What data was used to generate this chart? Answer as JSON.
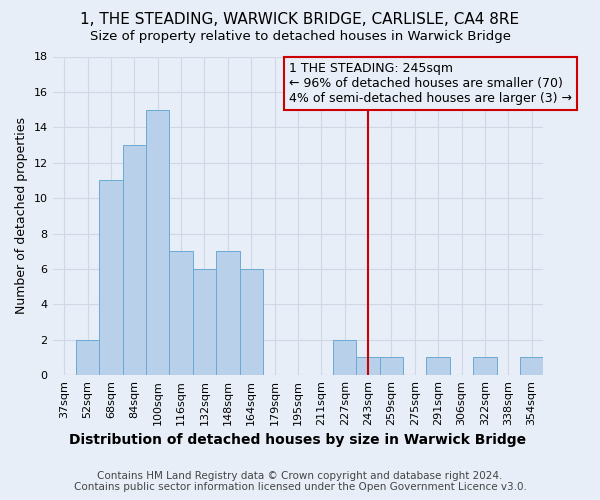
{
  "title": "1, THE STEADING, WARWICK BRIDGE, CARLISLE, CA4 8RE",
  "subtitle": "Size of property relative to detached houses in Warwick Bridge",
  "xlabel": "Distribution of detached houses by size in Warwick Bridge",
  "ylabel": "Number of detached properties",
  "footnote1": "Contains HM Land Registry data © Crown copyright and database right 2024.",
  "footnote2": "Contains public sector information licensed under the Open Government Licence v3.0.",
  "categories": [
    "37sqm",
    "52sqm",
    "68sqm",
    "84sqm",
    "100sqm",
    "116sqm",
    "132sqm",
    "148sqm",
    "164sqm",
    "179sqm",
    "195sqm",
    "211sqm",
    "227sqm",
    "243sqm",
    "259sqm",
    "275sqm",
    "291sqm",
    "306sqm",
    "322sqm",
    "338sqm",
    "354sqm"
  ],
  "values": [
    0,
    2,
    11,
    13,
    15,
    7,
    6,
    7,
    6,
    0,
    0,
    0,
    2,
    1,
    1,
    0,
    1,
    0,
    1,
    0,
    1
  ],
  "bar_color": "#b8d0ea",
  "bar_edge_color": "#6aaad4",
  "ylim": [
    0,
    18
  ],
  "yticks": [
    0,
    2,
    4,
    6,
    8,
    10,
    12,
    14,
    16,
    18
  ],
  "vline_index": 13,
  "vline_color": "#cc0000",
  "annotation_text": "1 THE STEADING: 245sqm\n← 96% of detached houses are smaller (70)\n4% of semi-detached houses are larger (3) →",
  "annotation_box_color": "#cc0000",
  "background_color": "#e8eef7",
  "grid_color": "#d0d8e8",
  "title_fontsize": 11,
  "subtitle_fontsize": 9.5,
  "xlabel_fontsize": 10,
  "ylabel_fontsize": 9,
  "tick_fontsize": 8,
  "annotation_fontsize": 9,
  "footnote_fontsize": 7.5
}
